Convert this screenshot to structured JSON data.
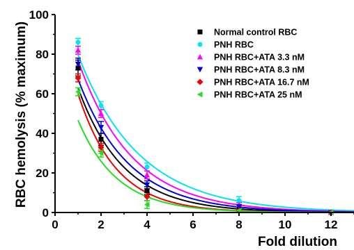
{
  "chart_data": {
    "type": "scatter",
    "xlabel": "Fold dilution",
    "ylabel": "RBC hemolysis (% maximum)",
    "xlim": [
      0,
      13
    ],
    "ylim": [
      0,
      100
    ],
    "x_ticks": [
      0,
      2,
      4,
      6,
      8,
      10,
      12
    ],
    "y_ticks": [
      0,
      20,
      40,
      60,
      80,
      100
    ],
    "x_tick_labels": [
      "0",
      "2",
      "4",
      "6",
      "8",
      "10",
      "12"
    ],
    "y_tick_labels": [
      "0",
      "20",
      "40",
      "60",
      "80",
      "100"
    ],
    "grid": false,
    "legend_position": "top-right",
    "fit_curves": true,
    "x": [
      1,
      2,
      4,
      8,
      12
    ],
    "series": [
      {
        "name": "Normal control RBC",
        "color": "#000000",
        "marker": "square",
        "values": [
          73,
          37,
          11,
          2,
          0
        ],
        "errors": [
          4,
          3,
          2,
          1,
          0
        ]
      },
      {
        "name": "PNH RBC",
        "color": "#00e5ee",
        "marker": "circle",
        "values": [
          86,
          54,
          23,
          6,
          0
        ],
        "errors": [
          2,
          2,
          2,
          2,
          0
        ]
      },
      {
        "name": "PNH RBC+ATA 3.3 nM",
        "color": "#ff00ff",
        "marker": "triangle-up",
        "values": [
          82,
          50,
          19,
          4,
          0
        ],
        "errors": [
          2,
          2,
          2,
          1,
          0
        ]
      },
      {
        "name": "PNH RBC+ATA 8.3 nM",
        "color": "#0000dd",
        "marker": "triangle-down",
        "values": [
          75,
          43,
          14,
          3,
          0
        ],
        "errors": [
          3,
          3,
          2,
          1,
          0
        ]
      },
      {
        "name": "PNH RBC+ATA 16.7 nM",
        "color": "#ee0000",
        "marker": "diamond",
        "values": [
          68,
          33,
          8,
          1,
          0
        ],
        "errors": [
          2,
          2,
          2,
          1,
          0
        ]
      },
      {
        "name": "PNH RBC+ATA 25 nM",
        "color": "#22dd22",
        "marker": "triangle-left",
        "values": [
          61,
          30,
          4,
          1,
          0
        ],
        "errors": [
          2,
          2,
          2,
          1,
          0
        ]
      }
    ]
  }
}
